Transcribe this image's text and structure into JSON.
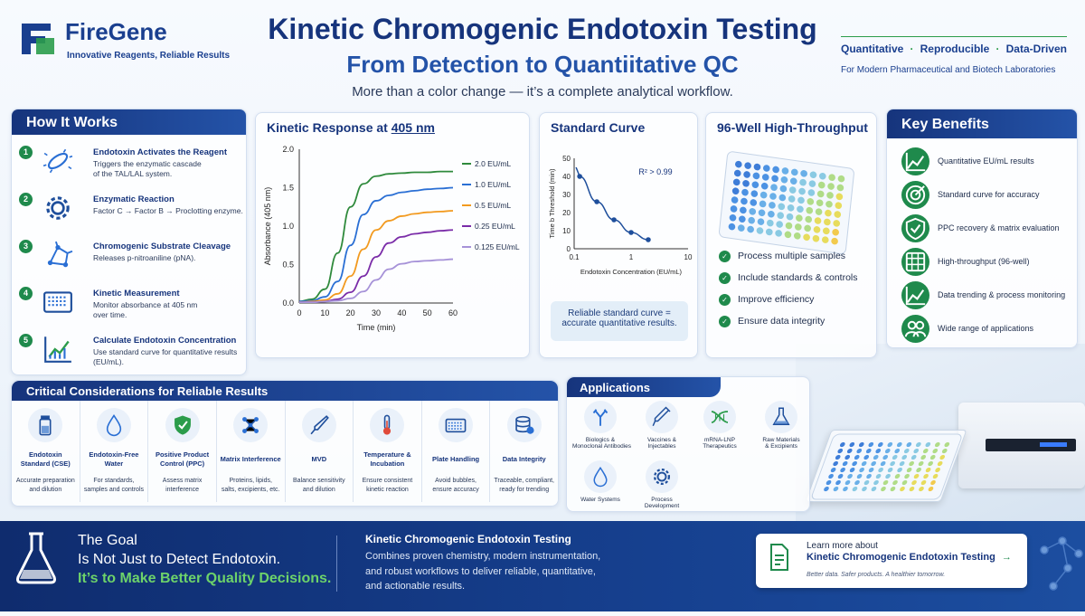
{
  "brand": {
    "name": "FireGene",
    "tagline": "Innovative Reagents, Reliable Results"
  },
  "header": {
    "title": "Kinetic Chromogenic Endotoxin Testing",
    "subtitle": "From Detection to Quantiitative QC",
    "tagline": "More than a color change — it’s a complete analytical workflow.",
    "badges": [
      "Quantitative",
      "Reproducible",
      "Data-Driven"
    ],
    "badge_sub": "For Modern Pharmaceutical and Biotech Laboratories"
  },
  "how": {
    "title": "How It Works",
    "steps": [
      {
        "n": "1",
        "title": "Endotoxin Activates the Reagent",
        "desc1": "Triggers the enzymatic cascade",
        "desc2": "of the TAL/LAL system.",
        "icon": "bacteria-icon"
      },
      {
        "n": "2",
        "title": "Enzymatic Reaction",
        "desc1": "Factor C → Factor B → Proclotting enzyme.",
        "desc2": "",
        "icon": "gear-icon"
      },
      {
        "n": "3",
        "title": "Chromogenic Substrate Cleavage",
        "desc1": "Releases p-nitroaniline (pNA).",
        "desc2": "",
        "icon": "molecule-icon"
      },
      {
        "n": "4",
        "title": "Kinetic Measurement",
        "desc1": "Monitor absorbance at 405 nm",
        "desc2": "over time.",
        "icon": "plate-reader-icon"
      },
      {
        "n": "5",
        "title": "Calculate Endotoxin Concentration",
        "desc1": "Use standard curve for quantitative results",
        "desc2": "(EU/mL).",
        "icon": "chart-icon"
      }
    ]
  },
  "kinetic_title": {
    "pre": "Kinetic Response at ",
    "hl": "405 nm"
  },
  "standard_curve": {
    "title": "Standard Curve",
    "r2": "R² > 0.99",
    "note1": "Reliable standard curve =",
    "note2": "accurate quantitative results."
  },
  "chart_data": [
    {
      "type": "line",
      "xlabel": "Time (min)",
      "ylabel": "Absorbance (405 nm)",
      "xlim": [
        0,
        60
      ],
      "ylim": [
        0,
        2.0
      ],
      "x_ticks": [
        "0",
        "10",
        "20",
        "30",
        "40",
        "50",
        "60"
      ],
      "y_ticks": [
        "0.0",
        "0.5",
        "1.0",
        "1.5",
        "2.0"
      ],
      "x": [
        0,
        5,
        10,
        15,
        20,
        25,
        30,
        35,
        40,
        45,
        50,
        55,
        60
      ],
      "series": [
        {
          "name": "2.0 EU/mL",
          "color": "#2f8a3c",
          "values": [
            0.02,
            0.05,
            0.18,
            0.65,
            1.25,
            1.55,
            1.65,
            1.68,
            1.69,
            1.7,
            1.7,
            1.71,
            1.71
          ]
        },
        {
          "name": "1.0 EU/mL",
          "color": "#2a6fd4",
          "values": [
            0.02,
            0.03,
            0.08,
            0.28,
            0.75,
            1.15,
            1.33,
            1.4,
            1.44,
            1.46,
            1.48,
            1.49,
            1.5
          ]
        },
        {
          "name": "0.5 EU/mL",
          "color": "#f29a1f",
          "values": [
            0.01,
            0.02,
            0.04,
            0.12,
            0.35,
            0.7,
            0.95,
            1.07,
            1.13,
            1.16,
            1.18,
            1.19,
            1.2
          ]
        },
        {
          "name": "0.25 EU/mL",
          "color": "#7a2ca8",
          "values": [
            0.01,
            0.01,
            0.02,
            0.05,
            0.14,
            0.35,
            0.6,
            0.78,
            0.86,
            0.9,
            0.92,
            0.94,
            0.95
          ]
        },
        {
          "name": "0.125 EU/mL",
          "color": "#a692d8",
          "values": [
            0.01,
            0.01,
            0.02,
            0.03,
            0.06,
            0.15,
            0.3,
            0.44,
            0.51,
            0.54,
            0.55,
            0.56,
            0.57
          ]
        }
      ]
    },
    {
      "type": "scatter",
      "xlabel": "Endotoxin Concentration (EU/mL)",
      "ylabel": "Time b Threshold (min)",
      "x_scale": "log",
      "xlim": [
        0.1,
        3.0
      ],
      "ylim": [
        0,
        50
      ],
      "x_ticks": [
        "0.1",
        "1",
        "10"
      ],
      "y_ticks": [
        "0",
        "10",
        "20",
        "30",
        "40",
        "50"
      ],
      "x": [
        0.125,
        0.25,
        0.5,
        1.0,
        2.0
      ],
      "values": [
        40,
        26,
        16,
        9,
        5
      ]
    }
  ],
  "well": {
    "title": "96-Well High-Throughput",
    "items": [
      "Process multiple samples",
      "Include standards & controls",
      "Improve efficiency",
      "Ensure data integrity"
    ]
  },
  "benefits": {
    "title": "Key Benefits",
    "items": [
      "Quantitative EU/mL results",
      "Standard curve for accuracy",
      "PPC recovery & matrix evaluation",
      "High-throughput (96-well)",
      "Data trending & process monitoring",
      "Wide range of applications"
    ]
  },
  "critical": {
    "title": "Critical Considerations for Reliable Results",
    "items": [
      {
        "t1": "Endotoxin",
        "t2": "Standard (CSE)",
        "d1": "Accurate preparation",
        "d2": "and dilution",
        "d3": "",
        "icon": "vial-icon"
      },
      {
        "t1": "Endotoxin-Free",
        "t2": "Water",
        "d1": "For standards,",
        "d2": "samples and controls",
        "d3": "",
        "icon": "water-drop-icon"
      },
      {
        "t1": "Positive Product",
        "t2": "Control (PPC)",
        "d1": "Assess matrix",
        "d2": "interference",
        "d3": "",
        "icon": "shield-check-icon"
      },
      {
        "t1": "Matrix Interference",
        "t2": "",
        "d1": "Proteins, lipids,",
        "d2": "salts, excipients, etc.",
        "d3": "",
        "icon": "network-icon"
      },
      {
        "t1": "MVD",
        "t2": "",
        "d1": "Balance sensitivity",
        "d2": "and dilution",
        "d3": "",
        "icon": "pipette-icon"
      },
      {
        "t1": "Temperature &",
        "t2": "Incubation",
        "d1": "Ensure consistent",
        "d2": "kinetic reaction",
        "d3": "",
        "icon": "thermometer-icon"
      },
      {
        "t1": "Plate Handling",
        "t2": "",
        "d1": "Avoid bubbles,",
        "d2": "ensure accuracy",
        "d3": "",
        "icon": "plate-icon"
      },
      {
        "t1": "Data Integrity",
        "t2": "",
        "d1": "Traceable, compliant,",
        "d2": "ready for trending",
        "d3": "",
        "icon": "database-icon"
      }
    ]
  },
  "apps": {
    "title": "Applications",
    "items": [
      {
        "l1": "Biologics &",
        "l2": "Monoclonal Antibodies",
        "icon": "antibody-icon"
      },
      {
        "l1": "Vaccines &",
        "l2": "Injectables",
        "icon": "syringe-icon"
      },
      {
        "l1": "mRNA-LNP",
        "l2": "Therapeutics",
        "icon": "dna-icon"
      },
      {
        "l1": "Raw Materials",
        "l2": "& Excipients",
        "icon": "flask-icon"
      },
      {
        "l1": "Water Systems",
        "l2": "",
        "icon": "water-drop-icon"
      },
      {
        "l1": "Process",
        "l2": "Development",
        "icon": "gear-icon"
      }
    ]
  },
  "footer": {
    "goal1": "The Goal",
    "goal2": "Is Not Just to Detect Endotoxin.",
    "goal3": "It’s to Make Better Quality Decisions.",
    "mid_title": "Kinetic Chromogenic Endotoxin Testing",
    "mid1": "Combines proven chemistry, modern instrumentation,",
    "mid2": "and robust workflows to deliver reliable, quantitative,",
    "mid3": "and actionable results.",
    "learn": "Learn more about",
    "learn_link": "Kinetic Chromogenic Endotoxin Testing",
    "learn_arrow": "→",
    "learn_sub": "Better data. Safer products. A healthier tomorrow."
  },
  "colors": {
    "navy": "#16347c",
    "green": "#1f8a4c",
    "accent_blue": "#2a6fd4"
  }
}
